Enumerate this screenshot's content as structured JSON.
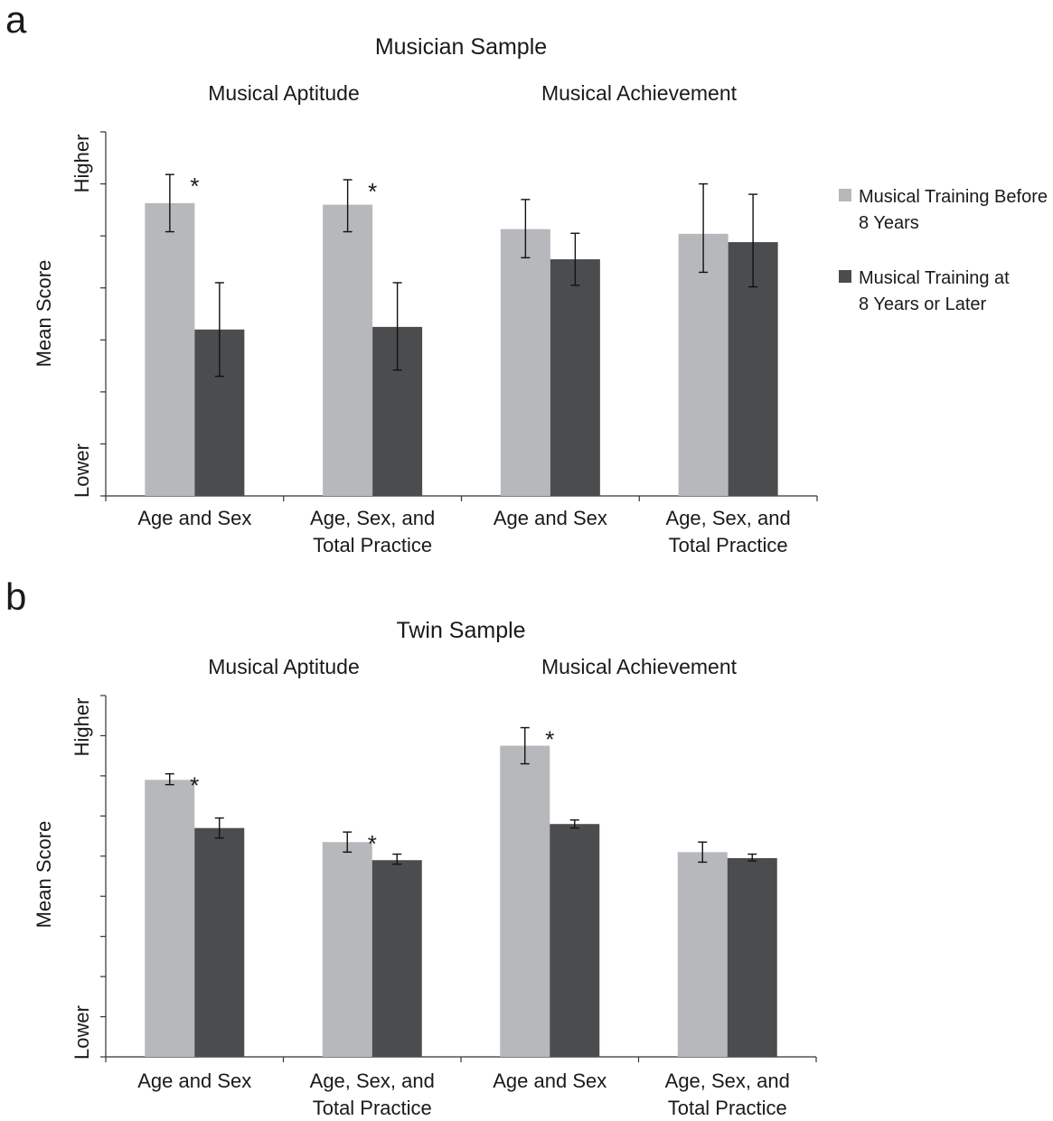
{
  "legend": [
    {
      "lines": [
        "Musical Training Before",
        "8 Years"
      ],
      "color": "#b7b8bb"
    },
    {
      "lines": [
        "Musical Training at",
        "8 Years or Later"
      ],
      "color": "#4b4c4e"
    }
  ],
  "chart_data": [
    {
      "type": "bar",
      "panel": "a",
      "title": "Musician Sample",
      "groups": [
        "Musical Aptitude",
        "Musical Achievement"
      ],
      "categories": [
        [
          "Age and Sex"
        ],
        [
          "Age, Sex, and",
          "Total Practice"
        ],
        [
          "Age and Sex"
        ],
        [
          "Age, Sex, and",
          "Total Practice"
        ]
      ],
      "ylabel": "Mean Score",
      "ytick_labels": {
        "low": "Lower",
        "high": "Higher"
      },
      "ylim": [
        0,
        7
      ],
      "yticks": [
        0,
        1,
        2,
        3,
        4,
        5,
        6,
        7
      ],
      "series": [
        {
          "name": "Musical Training Before 8 Years",
          "values": [
            5.63,
            5.6,
            5.13,
            5.04
          ],
          "err_low": [
            5.08,
            5.08,
            4.58,
            4.3
          ],
          "err_high": [
            6.18,
            6.08,
            5.7,
            6.0
          ]
        },
        {
          "name": "Musical Training at 8 Years or Later",
          "values": [
            3.2,
            3.25,
            4.55,
            4.88
          ],
          "err_low": [
            2.3,
            2.42,
            4.05,
            4.02
          ],
          "err_high": [
            4.1,
            4.1,
            5.05,
            5.8
          ]
        }
      ],
      "significance": [
        "*",
        "*",
        "",
        ""
      ]
    },
    {
      "type": "bar",
      "panel": "b",
      "title": "Twin Sample",
      "groups": [
        "Musical Aptitude",
        "Musical Achievement"
      ],
      "categories": [
        [
          "Age and Sex"
        ],
        [
          "Age, Sex, and",
          "Total Practice"
        ],
        [
          "Age and Sex"
        ],
        [
          "Age, Sex, and",
          "Total Practice"
        ]
      ],
      "ylabel": "Mean Score",
      "ytick_labels": {
        "low": "Lower",
        "high": "Higher"
      },
      "ylim": [
        0,
        9
      ],
      "yticks": [
        0,
        1,
        2,
        3,
        4,
        5,
        6,
        7,
        8,
        9
      ],
      "series": [
        {
          "name": "Musical Training Before 8 Years",
          "values": [
            6.9,
            5.35,
            7.75,
            5.1
          ],
          "err_low": [
            6.78,
            5.1,
            7.3,
            4.85
          ],
          "err_high": [
            7.05,
            5.6,
            8.2,
            5.35
          ]
        },
        {
          "name": "Musical Training at 8 Years or Later",
          "values": [
            5.7,
            4.9,
            5.8,
            4.95
          ],
          "err_low": [
            5.45,
            4.8,
            5.7,
            4.88
          ],
          "err_high": [
            5.95,
            5.05,
            5.9,
            5.05
          ]
        }
      ],
      "significance": [
        "*",
        "*",
        "*",
        ""
      ]
    }
  ]
}
